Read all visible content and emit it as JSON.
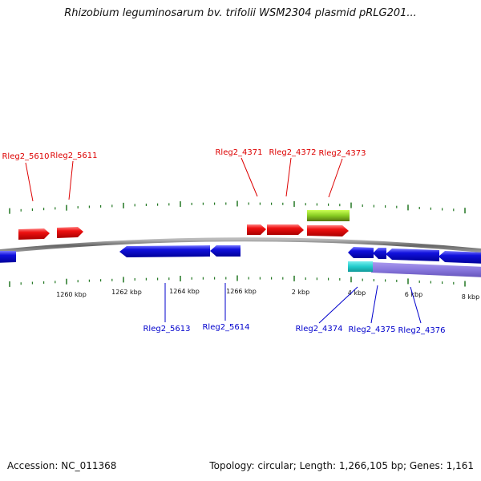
{
  "title": "Rhizobium leguminosarum bv. trifolii WSM2304 plasmid pRLG201...",
  "footer": {
    "accession": "Accession: NC_011368",
    "topology": "Topology: circular; Length: 1,266,105 bp; Genes: 1,161"
  },
  "colors": {
    "forward_gene": "#ee1111",
    "reverse_gene": "#1111dd",
    "highlight_green": "#88cc22",
    "highlight_cyan": "#22cccc",
    "highlight_purple": "#8877dd",
    "backbone": "#888888",
    "tick": "#227722"
  },
  "scale_labels": [
    "1260 kbp",
    "1262 kbp",
    "1264 kbp",
    "1266 kbp",
    "2 kbp",
    "4 kbp",
    "6 kbp",
    "8 kbp"
  ],
  "genes_top": [
    {
      "id": "Rleg2_5610"
    },
    {
      "id": "Rleg2_5611"
    },
    {
      "id": "Rleg2_4371"
    },
    {
      "id": "Rleg2_4372"
    },
    {
      "id": "Rleg2_4373"
    }
  ],
  "genes_bottom": [
    {
      "id": "Rleg2_5613"
    },
    {
      "id": "Rleg2_5614"
    },
    {
      "id": "Rleg2_4374"
    },
    {
      "id": "Rleg2_4375"
    },
    {
      "id": "Rleg2_4376"
    }
  ]
}
